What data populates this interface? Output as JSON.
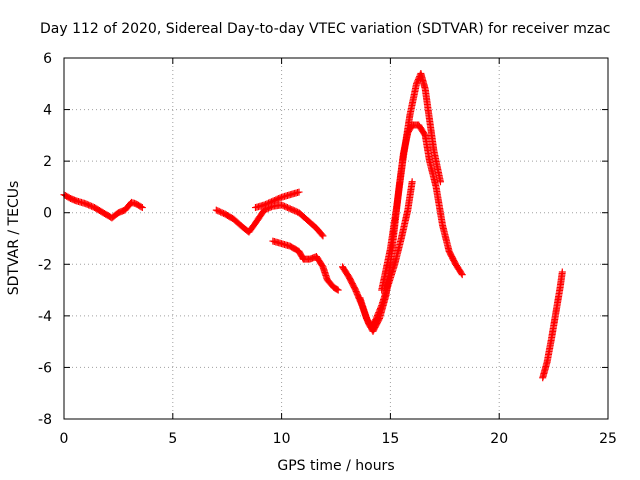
{
  "chart_data": {
    "type": "scatter",
    "title": "Day 112 of 2020, Sidereal Day-to-day VTEC variation (SDTVAR) for receiver mzac",
    "xlabel": "GPS time / hours",
    "ylabel": "SDTVAR / TECUs",
    "xlim": [
      0,
      25
    ],
    "ylim": [
      -8,
      6
    ],
    "xticks": [
      0,
      5,
      10,
      15,
      20,
      25
    ],
    "yticks": [
      -8,
      -6,
      -4,
      -2,
      0,
      2,
      4,
      6
    ],
    "grid": true,
    "marker": "+",
    "color": "#ff0000",
    "series": [
      {
        "name": "arc-1",
        "points": [
          [
            0.0,
            0.7
          ],
          [
            0.3,
            0.55
          ],
          [
            0.6,
            0.45
          ],
          [
            1.0,
            0.35
          ],
          [
            1.4,
            0.2
          ],
          [
            1.8,
            0.0
          ],
          [
            2.2,
            -0.2
          ],
          [
            2.5,
            0.0
          ],
          [
            2.8,
            0.1
          ],
          [
            3.1,
            0.4
          ],
          [
            3.3,
            0.35
          ],
          [
            3.6,
            0.2
          ]
        ]
      },
      {
        "name": "arc-2",
        "points": [
          [
            7.0,
            0.1
          ],
          [
            7.4,
            -0.05
          ],
          [
            7.8,
            -0.25
          ],
          [
            8.2,
            -0.55
          ],
          [
            8.5,
            -0.75
          ],
          [
            8.8,
            -0.4
          ],
          [
            9.2,
            0.1
          ],
          [
            9.6,
            0.25
          ],
          [
            10.0,
            0.3
          ],
          [
            10.4,
            0.15
          ],
          [
            10.8,
            0.0
          ],
          [
            11.2,
            -0.3
          ],
          [
            11.6,
            -0.6
          ],
          [
            11.9,
            -0.9
          ]
        ]
      },
      {
        "name": "arc-3",
        "points": [
          [
            8.8,
            0.2
          ],
          [
            9.2,
            0.3
          ],
          [
            9.6,
            0.45
          ],
          [
            10.0,
            0.6
          ],
          [
            10.4,
            0.7
          ],
          [
            10.8,
            0.8
          ]
        ]
      },
      {
        "name": "arc-4",
        "points": [
          [
            9.6,
            -1.1
          ],
          [
            10.0,
            -1.2
          ],
          [
            10.4,
            -1.3
          ],
          [
            10.8,
            -1.5
          ],
          [
            11.0,
            -1.8
          ],
          [
            11.3,
            -1.8
          ],
          [
            11.6,
            -1.7
          ],
          [
            11.9,
            -2.1
          ],
          [
            12.1,
            -2.6
          ],
          [
            12.4,
            -2.9
          ],
          [
            12.6,
            -3.0
          ]
        ]
      },
      {
        "name": "arc-5",
        "points": [
          [
            12.8,
            -2.1
          ],
          [
            13.1,
            -2.5
          ],
          [
            13.4,
            -3.0
          ],
          [
            13.7,
            -3.6
          ],
          [
            14.0,
            -4.3
          ],
          [
            14.2,
            -4.6
          ],
          [
            14.5,
            -4.1
          ],
          [
            14.8,
            -3.2
          ],
          [
            15.0,
            -2.0
          ],
          [
            15.2,
            -0.5
          ],
          [
            15.4,
            1.0
          ],
          [
            15.6,
            2.3
          ],
          [
            15.8,
            3.1
          ],
          [
            16.0,
            3.4
          ],
          [
            16.3,
            3.4
          ],
          [
            16.6,
            3.0
          ],
          [
            16.8,
            2.0
          ],
          [
            17.1,
            1.0
          ],
          [
            17.4,
            -0.5
          ],
          [
            17.7,
            -1.5
          ],
          [
            18.0,
            -2.0
          ],
          [
            18.3,
            -2.4
          ]
        ]
      },
      {
        "name": "arc-6",
        "points": [
          [
            13.6,
            -3.3
          ],
          [
            13.9,
            -4.1
          ],
          [
            14.1,
            -4.4
          ],
          [
            14.3,
            -4.2
          ],
          [
            14.6,
            -3.6
          ],
          [
            14.9,
            -2.8
          ],
          [
            15.2,
            -2.0
          ],
          [
            15.5,
            -1.0
          ],
          [
            15.8,
            0.1
          ],
          [
            16.0,
            1.2
          ]
        ]
      },
      {
        "name": "arc-7",
        "points": [
          [
            14.6,
            -3.0
          ],
          [
            15.0,
            -1.4
          ],
          [
            15.3,
            0.3
          ],
          [
            15.6,
            2.2
          ],
          [
            15.9,
            3.8
          ],
          [
            16.2,
            5.0
          ],
          [
            16.4,
            5.4
          ],
          [
            16.6,
            4.8
          ],
          [
            16.8,
            3.6
          ],
          [
            17.0,
            2.4
          ],
          [
            17.3,
            1.2
          ]
        ]
      },
      {
        "name": "arc-8",
        "points": [
          [
            22.0,
            -6.4
          ],
          [
            22.2,
            -5.8
          ],
          [
            22.4,
            -4.9
          ],
          [
            22.6,
            -3.9
          ],
          [
            22.8,
            -2.9
          ],
          [
            22.9,
            -2.3
          ]
        ]
      }
    ]
  }
}
